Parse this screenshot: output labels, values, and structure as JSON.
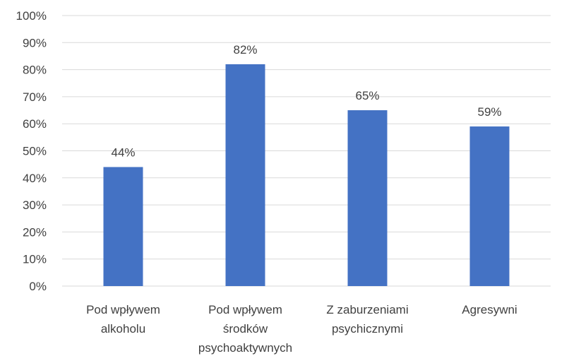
{
  "chart_data": {
    "type": "bar",
    "categories": [
      [
        "Pod wpływem",
        "alkoholu"
      ],
      [
        "Pod wpływem",
        "środków",
        "psychoaktywnych"
      ],
      [
        "Z zaburzeniami",
        "psychicznymi"
      ],
      [
        "Agresywni"
      ]
    ],
    "values": [
      44,
      82,
      65,
      59
    ],
    "data_labels": [
      "44%",
      "82%",
      "65%",
      "59%"
    ],
    "ylim": [
      0,
      100
    ],
    "yticks": [
      0,
      10,
      20,
      30,
      40,
      50,
      60,
      70,
      80,
      90,
      100
    ],
    "ytick_labels": [
      "0%",
      "10%",
      "20%",
      "30%",
      "40%",
      "50%",
      "60%",
      "70%",
      "80%",
      "90%",
      "100%"
    ],
    "title": "",
    "xlabel": "",
    "ylabel": "",
    "grid": "horizontal",
    "legend": "none",
    "colors": {
      "bar": "#4472C4",
      "grid": "#D9D9D9",
      "text": "#404040"
    }
  }
}
